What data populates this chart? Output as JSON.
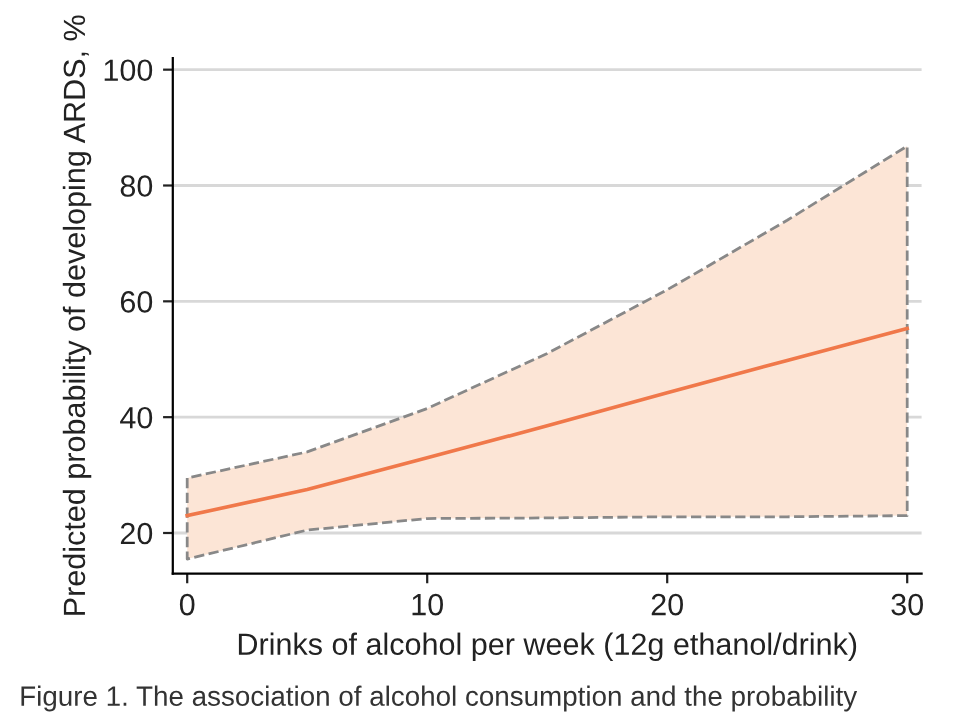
{
  "chart_data": {
    "type": "line",
    "xlabel": "Drinks of alcohol per week (12g ethanol/drink)",
    "ylabel": "Predicted probability of developing ARDS, %",
    "annotations": [
      "Figure 1. The association of alcohol consumption and the probability"
    ],
    "series": [
      {
        "color": "#f0784a",
        "x": [
          0,
          5,
          10,
          15,
          20,
          25,
          30
        ],
        "values": [
          23,
          27.5,
          33,
          38.5,
          44.2,
          49.8,
          55.3
        ],
        "lower": [
          15.5,
          20.5,
          22.5,
          22.6,
          22.8,
          22.8,
          23
        ],
        "upper": [
          29.5,
          34,
          41.5,
          51,
          62,
          74,
          86.8
        ]
      }
    ],
    "xlim": [
      -0.6,
      30.6
    ],
    "ylim": [
      13,
      102
    ],
    "xticks": [
      0,
      10,
      20,
      30
    ],
    "yticks": [
      20,
      40,
      60,
      80,
      100
    ],
    "grid": "y",
    "line_style": "solid",
    "marker": "none"
  }
}
